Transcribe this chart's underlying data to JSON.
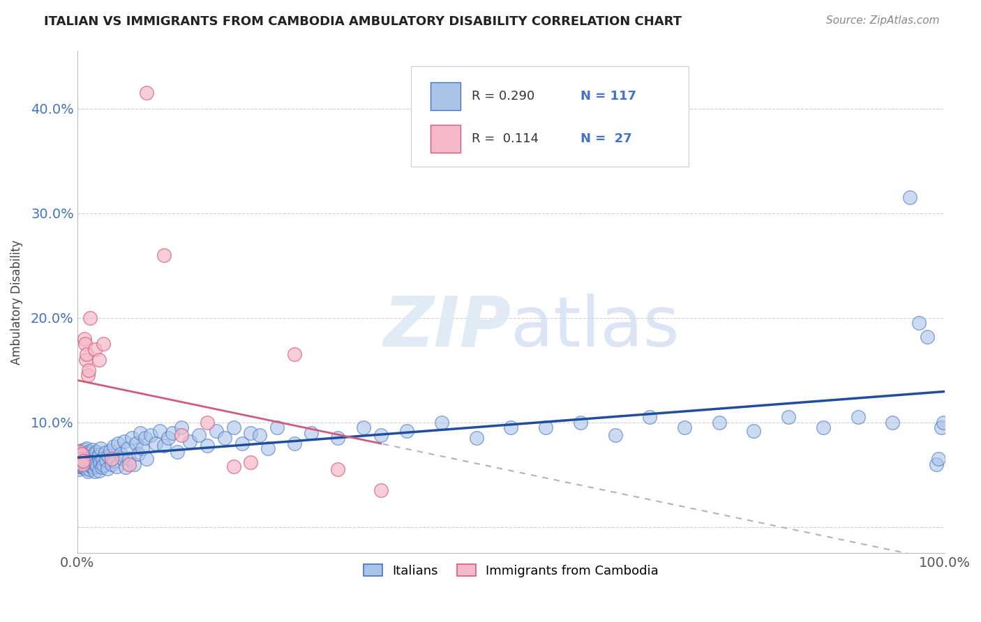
{
  "title": "ITALIAN VS IMMIGRANTS FROM CAMBODIA AMBULATORY DISABILITY CORRELATION CHART",
  "source": "Source: ZipAtlas.com",
  "ylabel": "Ambulatory Disability",
  "xlabel": "",
  "xlim": [
    0,
    1.0
  ],
  "ylim": [
    -0.025,
    0.455
  ],
  "ytick_vals": [
    0.0,
    0.1,
    0.2,
    0.3,
    0.4
  ],
  "ytick_labels": [
    "",
    "10.0%",
    "20.0%",
    "30.0%",
    "40.0%"
  ],
  "xtick_vals": [
    0.0,
    1.0
  ],
  "xtick_labels": [
    "0.0%",
    "100.0%"
  ],
  "color_italian_fill": "#aac4e8",
  "color_italian_edge": "#4472c4",
  "color_cambodia_fill": "#f5b8c8",
  "color_cambodia_edge": "#d45a7a",
  "color_italian_line": "#1f4e9e",
  "color_cambodia_line": "#d45a7a",
  "color_dashed_line": "#c0a8c8",
  "background_color": "#ffffff",
  "grid_color": "#d0d0d0",
  "watermark": "ZIPatlas",
  "italians_x": [
    0.001,
    0.002,
    0.002,
    0.003,
    0.003,
    0.004,
    0.004,
    0.005,
    0.005,
    0.006,
    0.006,
    0.007,
    0.007,
    0.008,
    0.008,
    0.009,
    0.009,
    0.01,
    0.01,
    0.011,
    0.011,
    0.012,
    0.012,
    0.013,
    0.013,
    0.014,
    0.015,
    0.015,
    0.016,
    0.016,
    0.017,
    0.018,
    0.018,
    0.019,
    0.02,
    0.02,
    0.021,
    0.022,
    0.023,
    0.024,
    0.025,
    0.025,
    0.026,
    0.027,
    0.028,
    0.029,
    0.03,
    0.032,
    0.033,
    0.035,
    0.036,
    0.038,
    0.04,
    0.042,
    0.043,
    0.045,
    0.047,
    0.05,
    0.052,
    0.054,
    0.056,
    0.058,
    0.06,
    0.063,
    0.065,
    0.068,
    0.07,
    0.073,
    0.075,
    0.078,
    0.08,
    0.085,
    0.09,
    0.095,
    0.1,
    0.105,
    0.11,
    0.115,
    0.12,
    0.13,
    0.14,
    0.15,
    0.16,
    0.17,
    0.18,
    0.19,
    0.2,
    0.21,
    0.22,
    0.23,
    0.25,
    0.27,
    0.3,
    0.33,
    0.35,
    0.38,
    0.42,
    0.46,
    0.5,
    0.54,
    0.58,
    0.62,
    0.66,
    0.7,
    0.74,
    0.78,
    0.82,
    0.86,
    0.9,
    0.94,
    0.96,
    0.97,
    0.98,
    0.99,
    0.993,
    0.996,
    0.998
  ],
  "italians_y": [
    0.068,
    0.062,
    0.055,
    0.071,
    0.058,
    0.065,
    0.073,
    0.06,
    0.069,
    0.057,
    0.064,
    0.07,
    0.058,
    0.066,
    0.063,
    0.059,
    0.074,
    0.056,
    0.068,
    0.061,
    0.075,
    0.053,
    0.067,
    0.06,
    0.072,
    0.055,
    0.063,
    0.07,
    0.058,
    0.066,
    0.061,
    0.074,
    0.057,
    0.069,
    0.053,
    0.065,
    0.06,
    0.072,
    0.058,
    0.067,
    0.054,
    0.069,
    0.062,
    0.075,
    0.057,
    0.065,
    0.059,
    0.071,
    0.064,
    0.056,
    0.068,
    0.073,
    0.06,
    0.077,
    0.063,
    0.058,
    0.08,
    0.07,
    0.066,
    0.082,
    0.057,
    0.075,
    0.065,
    0.085,
    0.06,
    0.08,
    0.07,
    0.09,
    0.075,
    0.085,
    0.065,
    0.088,
    0.08,
    0.092,
    0.078,
    0.085,
    0.09,
    0.072,
    0.095,
    0.082,
    0.088,
    0.078,
    0.092,
    0.085,
    0.095,
    0.08,
    0.09,
    0.088,
    0.075,
    0.095,
    0.08,
    0.09,
    0.085,
    0.095,
    0.088,
    0.092,
    0.1,
    0.085,
    0.095,
    0.095,
    0.1,
    0.088,
    0.105,
    0.095,
    0.1,
    0.092,
    0.105,
    0.095,
    0.105,
    0.1,
    0.315,
    0.195,
    0.182,
    0.06,
    0.065,
    0.095,
    0.1
  ],
  "cambodia_x": [
    0.002,
    0.003,
    0.004,
    0.005,
    0.006,
    0.007,
    0.008,
    0.009,
    0.01,
    0.011,
    0.012,
    0.013,
    0.015,
    0.02,
    0.025,
    0.03,
    0.04,
    0.06,
    0.08,
    0.1,
    0.12,
    0.15,
    0.18,
    0.2,
    0.25,
    0.3,
    0.35
  ],
  "cambodia_y": [
    0.068,
    0.072,
    0.065,
    0.07,
    0.06,
    0.063,
    0.18,
    0.175,
    0.16,
    0.165,
    0.145,
    0.15,
    0.2,
    0.17,
    0.16,
    0.175,
    0.065,
    0.06,
    0.415,
    0.26,
    0.088,
    0.1,
    0.058,
    0.062,
    0.165,
    0.055,
    0.035
  ],
  "R1": 0.29,
  "N1": 117,
  "R2": 0.114,
  "N2": 27
}
